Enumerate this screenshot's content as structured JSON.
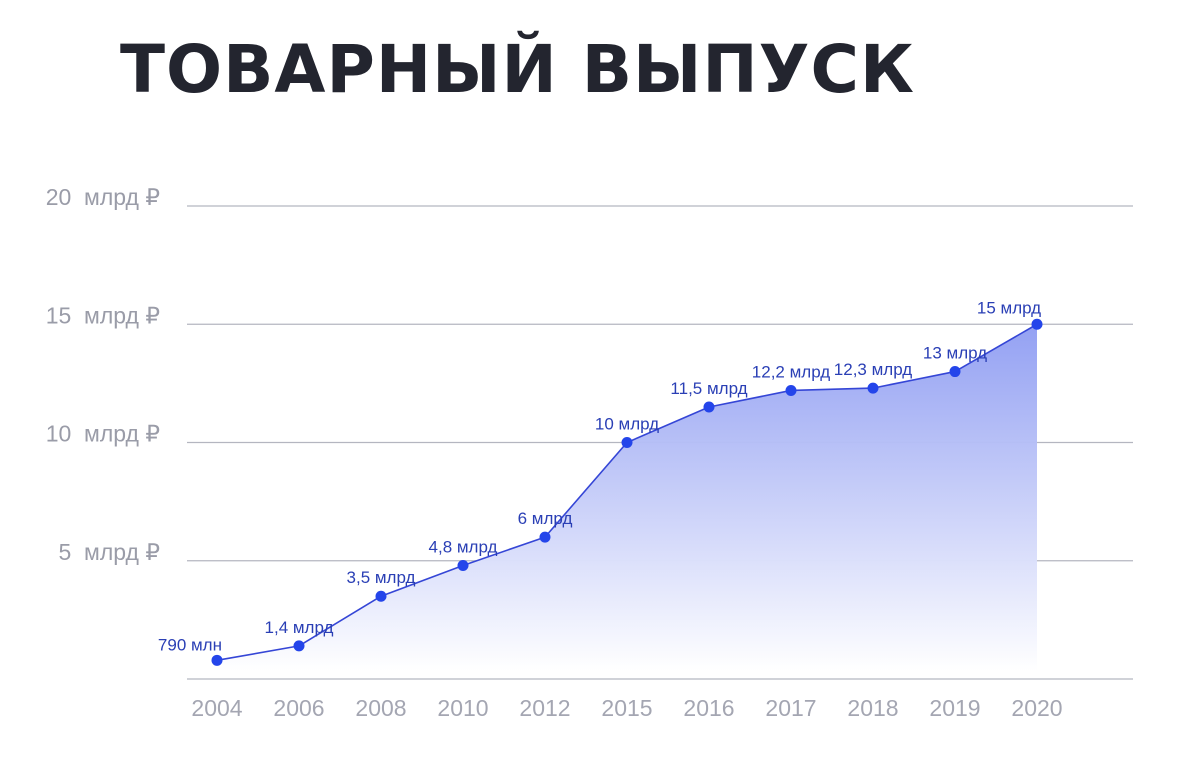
{
  "chart_data": {
    "type": "area",
    "title": "ТОВАРНЫЙ ВЫПУСК",
    "xlabel": "",
    "ylabel": "",
    "ylim": [
      0,
      20
    ],
    "yticks": [
      {
        "value": 5,
        "label": "5  млрд ₽"
      },
      {
        "value": 10,
        "label": "10  млрд ₽"
      },
      {
        "value": 15,
        "label": "15  млрд ₽"
      },
      {
        "value": 20,
        "label": "20  млрд ₽"
      }
    ],
    "categories": [
      "2004",
      "2006",
      "2008",
      "2010",
      "2012",
      "2015",
      "2016",
      "2017",
      "2018",
      "2019",
      "2020"
    ],
    "values": [
      0.79,
      1.4,
      3.5,
      4.8,
      6,
      10,
      11.5,
      12.2,
      12.3,
      13,
      15
    ],
    "data_labels": [
      "790 млн",
      "1,4 млрд",
      "3,5 млрд",
      "4,8 млрд",
      "6 млрд",
      "10 млрд",
      "11,5 млрд",
      "12,2 млрд",
      "12,3 млрд",
      "13 млрд",
      "15 млрд"
    ],
    "colors": {
      "line": "#3546d6",
      "point": "#2445ea",
      "fill_top": "#8e9cf2",
      "fill_bottom": "#ffffff",
      "grid": "#b4b6c0",
      "title": "#23252f"
    }
  }
}
